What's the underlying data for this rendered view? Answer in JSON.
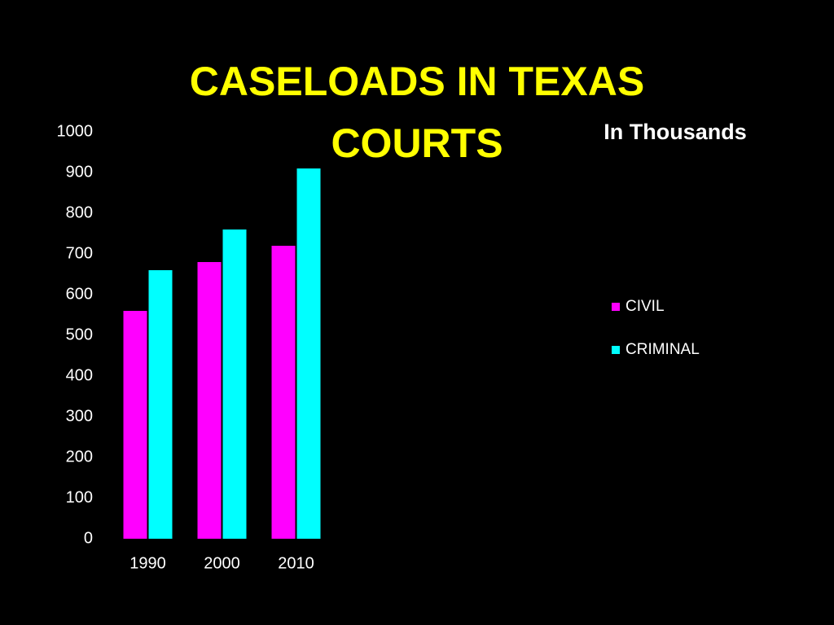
{
  "chart_data": {
    "type": "bar",
    "title": "CASELOADS IN TEXAS COURTS",
    "subtitle": "In Thousands",
    "categories": [
      "1990",
      "2000",
      "2010"
    ],
    "series": [
      {
        "name": "CIVIL",
        "color": "#ff00ff",
        "values": [
          560,
          680,
          720
        ]
      },
      {
        "name": "CRIMINAL",
        "color": "#00ffff",
        "values": [
          660,
          760,
          910
        ]
      }
    ],
    "ylim": [
      0,
      1000
    ],
    "yticks": [
      0,
      100,
      200,
      300,
      400,
      500,
      600,
      700,
      800,
      900,
      1000
    ],
    "grid": false,
    "legend": "right"
  }
}
